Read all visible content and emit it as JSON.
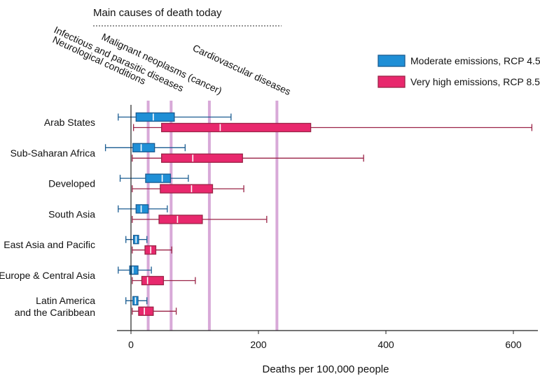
{
  "chart_data": {
    "type": "box",
    "orientation": "horizontal",
    "xlabel": "Deaths per 100,000 people",
    "xlim": [
      -40,
      640
    ],
    "xticks": [
      0,
      200,
      400,
      600
    ],
    "categories": [
      "Arab States",
      "Sub-Saharan Africa",
      "Developed",
      "South Asia",
      "East Asia and Pacific",
      "Europe & Central Asia",
      "Latin America\nand the Caribbean"
    ],
    "series": [
      {
        "name": "Moderate emissions, RCP 4.5",
        "color": "#1f8fd6",
        "stroke": "#1a5c91",
        "boxes": [
          {
            "min": -20,
            "q1": 8,
            "median": 35,
            "q3": 68,
            "max": 157
          },
          {
            "min": -40,
            "q1": 3,
            "median": 16,
            "q3": 37,
            "max": 85
          },
          {
            "min": -17,
            "q1": 23,
            "median": 49,
            "q3": 62,
            "max": 90
          },
          {
            "min": -20,
            "q1": 8,
            "median": 16,
            "q3": 27,
            "max": 57
          },
          {
            "min": -8,
            "q1": 4,
            "median": 8,
            "q3": 12,
            "max": 25
          },
          {
            "min": -20,
            "q1": -2,
            "median": 3,
            "q3": 11,
            "max": 32
          },
          {
            "min": -8,
            "q1": 3,
            "median": 7,
            "q3": 11,
            "max": 25
          }
        ]
      },
      {
        "name": "Very high emissions, RCP 8.5",
        "color": "#e8286d",
        "stroke": "#9a2346",
        "boxes": [
          {
            "min": 4,
            "q1": 48,
            "median": 140,
            "q3": 282,
            "max": 629
          },
          {
            "min": 2,
            "q1": 48,
            "median": 97,
            "q3": 175,
            "max": 365
          },
          {
            "min": 2,
            "q1": 46,
            "median": 95,
            "q3": 128,
            "max": 177
          },
          {
            "min": 2,
            "q1": 44,
            "median": 73,
            "q3": 112,
            "max": 213
          },
          {
            "min": 2,
            "q1": 22,
            "median": 31,
            "q3": 39,
            "max": 64
          },
          {
            "min": 2,
            "q1": 17,
            "median": 26,
            "q3": 51,
            "max": 101
          },
          {
            "min": 2,
            "q1": 12,
            "median": 21,
            "q3": 35,
            "max": 71
          }
        ]
      }
    ],
    "reference_lines": {
      "heading": "Main causes of death today",
      "lines": [
        {
          "label": "Infectious and parasitic diseases",
          "value": 27
        },
        {
          "label": "Neurological conditions",
          "value": 27
        },
        {
          "label": "Malignant neoplasms (cancer)",
          "value": 63
        },
        {
          "label": "Cardiovascular diseases",
          "value": 123
        },
        {
          "label": "Cardiovascular diseases",
          "value": 229
        }
      ],
      "annotations": [
        {
          "text": "Infectious and parasitic diseases",
          "value": 27
        },
        {
          "text": "Neurological conditions",
          "value": 27
        },
        {
          "text": "Malignant neoplasms (cancer)",
          "value": 63
        },
        {
          "text": "Cardiovascular diseases",
          "value": 229
        }
      ],
      "color": "#d8a9d8"
    },
    "legend_position": "top-right",
    "grid": false
  }
}
